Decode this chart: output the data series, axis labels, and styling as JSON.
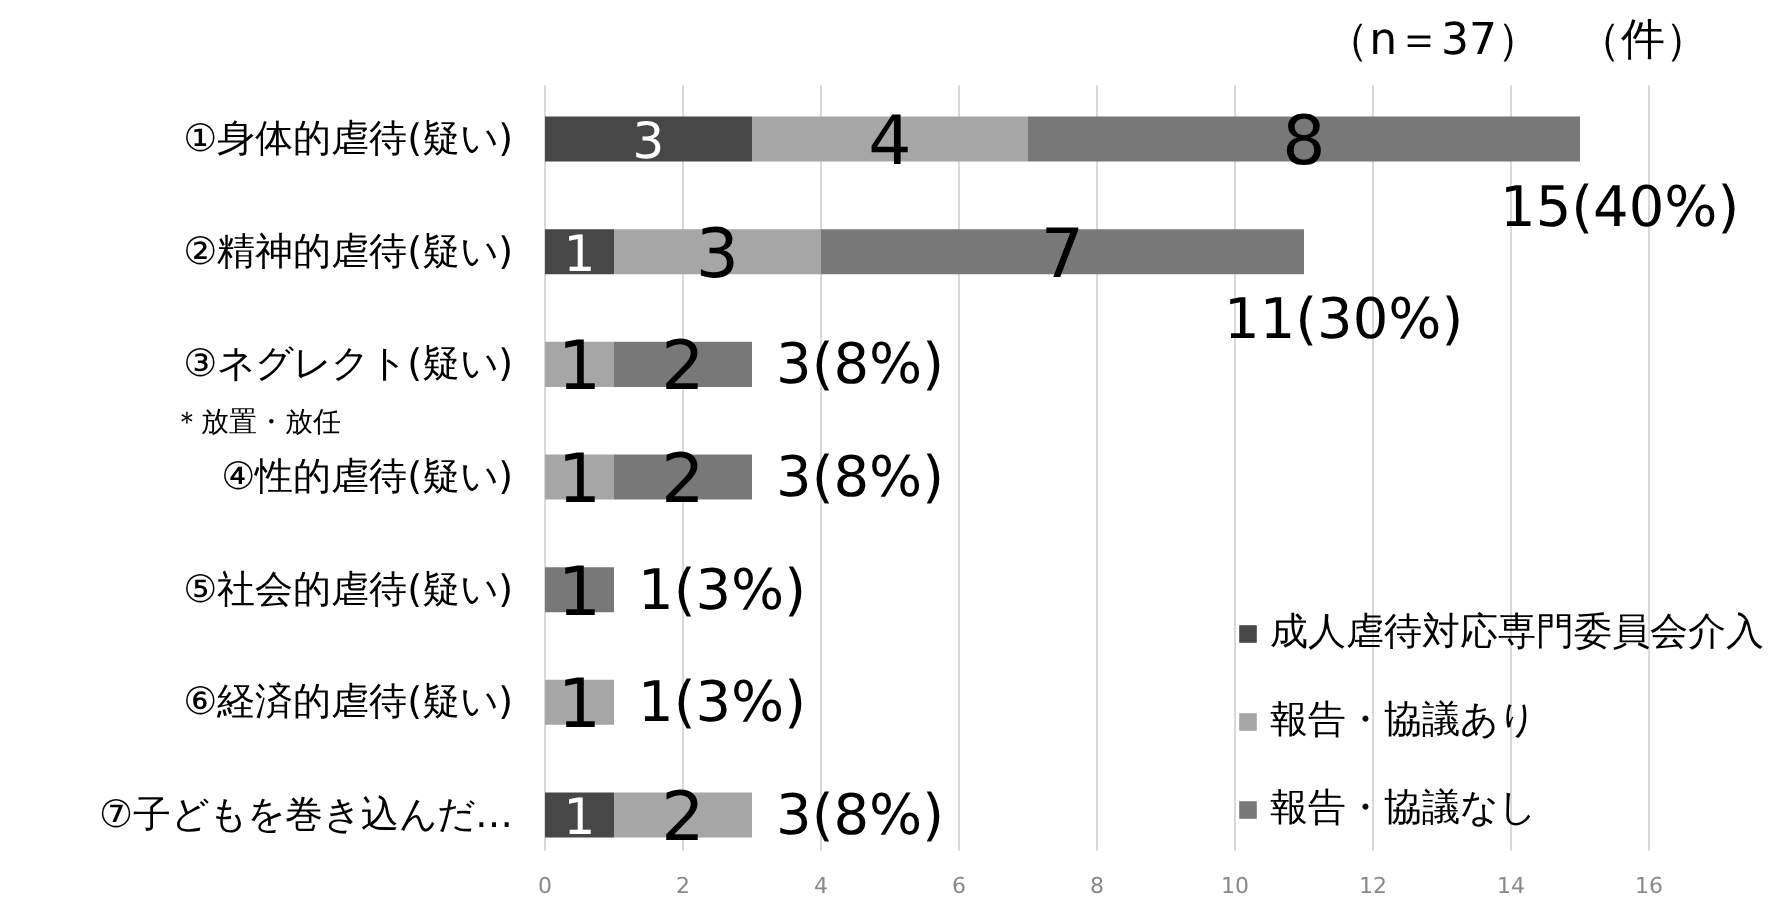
{
  "chart_data": {
    "type": "bar",
    "orientation": "horizontal",
    "stacked": true,
    "categories": [
      "①身体的虐待(疑い)",
      "②精神的虐待(疑い)",
      "③ネグレクト(疑い)",
      "④性的虐待(疑い)",
      "⑤社会的虐待(疑い)",
      "⑥経済的虐待(疑い)",
      "⑦子どもを巻き込んだ…"
    ],
    "series": [
      {
        "name": "成人虐待対応専門委員会介入",
        "color": "#474747",
        "values": [
          3,
          1,
          0,
          0,
          0,
          0,
          1
        ],
        "value_labels": [
          "3",
          "1",
          null,
          null,
          null,
          null,
          "1"
        ]
      },
      {
        "name": "報告・協議あり",
        "color": "#a6a6a6",
        "values": [
          4,
          3,
          1,
          1,
          0,
          1,
          2
        ],
        "value_labels": [
          "4",
          "3",
          "1",
          "1",
          null,
          "1",
          "2"
        ]
      },
      {
        "name": "報告・協議なし",
        "color": "#787878",
        "values": [
          8,
          7,
          2,
          2,
          1,
          0,
          0
        ],
        "value_labels": [
          "8",
          "7",
          "2",
          "2",
          "1",
          null,
          null
        ]
      }
    ],
    "xlim": [
      0,
      16
    ],
    "xticks": [
      0,
      2,
      4,
      6,
      8,
      10,
      12,
      14,
      16
    ],
    "grid": "x",
    "legend": "bottom right",
    "totals": [
      "15(40%)",
      "11(30%)",
      "3(8%)",
      "3(8%)",
      "1(3%)",
      "1(3%)",
      "3(8%)"
    ],
    "annotations": [
      "（n＝37）",
      "（件）",
      "＊放置・放任"
    ]
  }
}
